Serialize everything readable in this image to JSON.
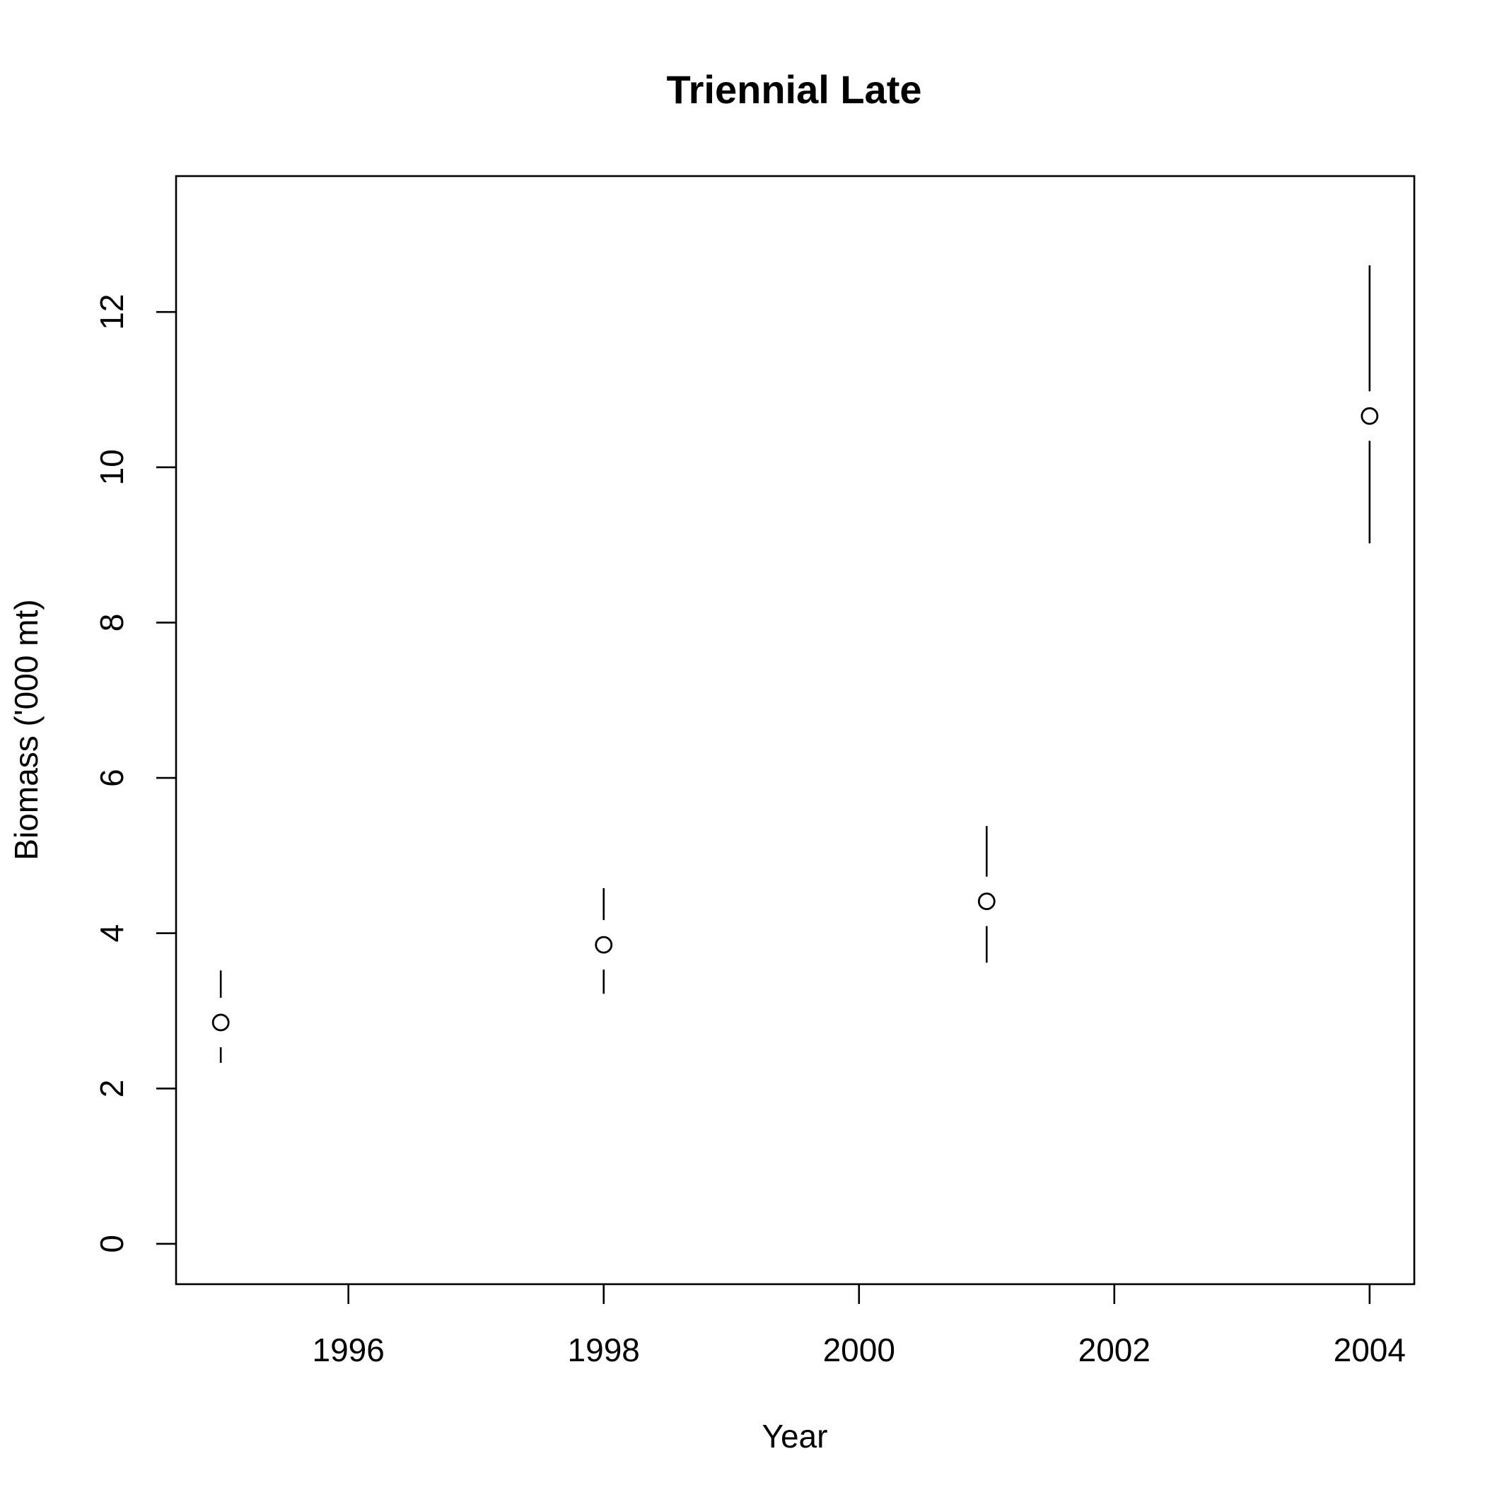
{
  "chart_data": {
    "type": "scatter",
    "title": "Triennial Late",
    "xlabel": "Year",
    "ylabel": "Biomass ('000 mt)",
    "xlim": [
      1994.65,
      2004.35
    ],
    "ylim": [
      -0.52,
      13.75
    ],
    "x_ticks": [
      1996,
      1998,
      2000,
      2002,
      2004
    ],
    "y_ticks": [
      0,
      2,
      4,
      6,
      8,
      10,
      12
    ],
    "grid": false,
    "points": [
      {
        "x": 1995,
        "y": 2.85,
        "lower": 2.33,
        "upper": 3.52
      },
      {
        "x": 1998,
        "y": 3.85,
        "lower": 3.22,
        "upper": 4.58
      },
      {
        "x": 2001,
        "y": 4.41,
        "lower": 3.62,
        "upper": 5.38
      },
      {
        "x": 2004,
        "y": 10.66,
        "lower": 9.02,
        "upper": 12.6
      }
    ]
  }
}
